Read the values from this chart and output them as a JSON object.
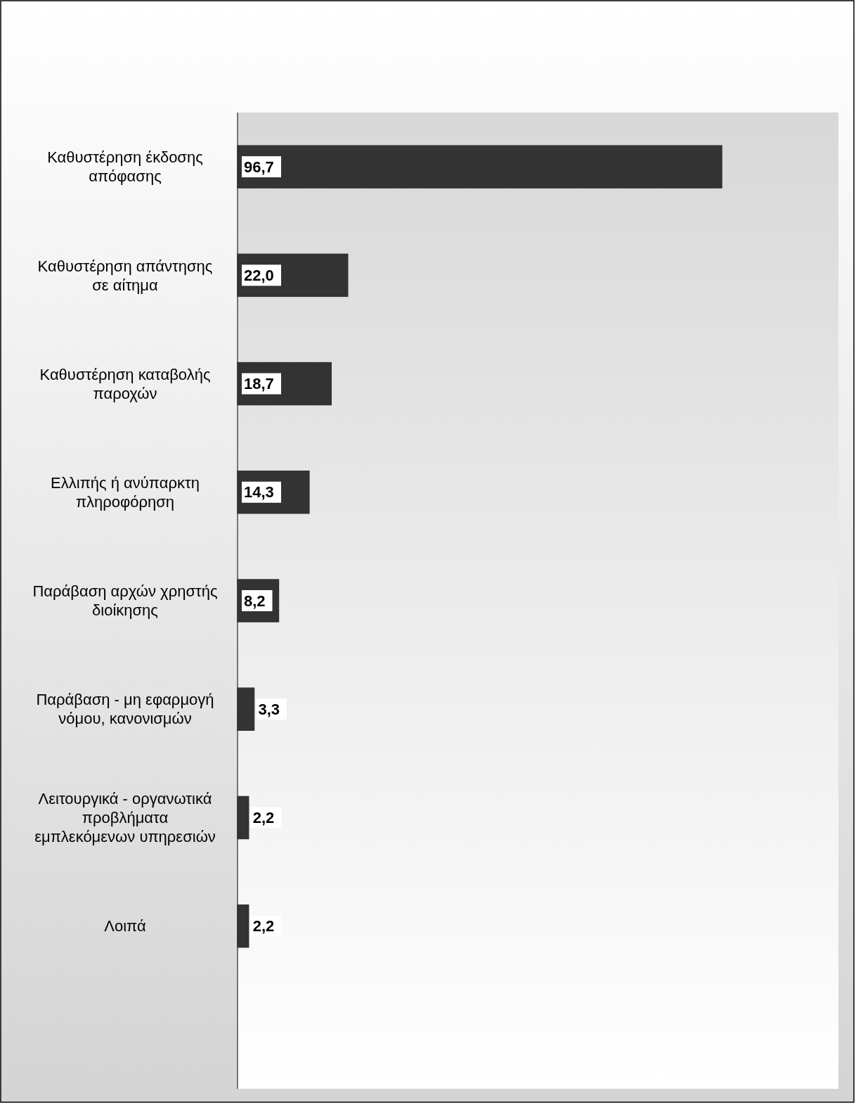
{
  "chart_data": {
    "type": "bar",
    "orientation": "horizontal",
    "categories": [
      "Καθυστέρηση έκδοσης απόφασης",
      "Καθυστέρηση απάντησης σε αίτημα",
      "Καθυστέρηση καταβολής παροχών",
      "Ελλιπής ή ανύπαρκτη πληροφόρηση",
      "Παράβαση αρχών χρηστής διοίκησης",
      "Παράβαση - μη εφαρμογή νόμου, κανονισμών",
      "Λειτουργικά - οργανωτικά προβλήματα εμπλεκόμενων υπηρεσιών",
      "Λοιπά"
    ],
    "values": [
      96.7,
      22.0,
      18.7,
      14.3,
      8.2,
      3.3,
      2.2,
      2.2
    ],
    "value_labels": [
      "96,7",
      "22,0",
      "18,7",
      "14,3",
      "8,2",
      "3,3",
      "2,2",
      "2,2"
    ],
    "color": "#333333",
    "xlim": [
      0,
      120
    ]
  }
}
